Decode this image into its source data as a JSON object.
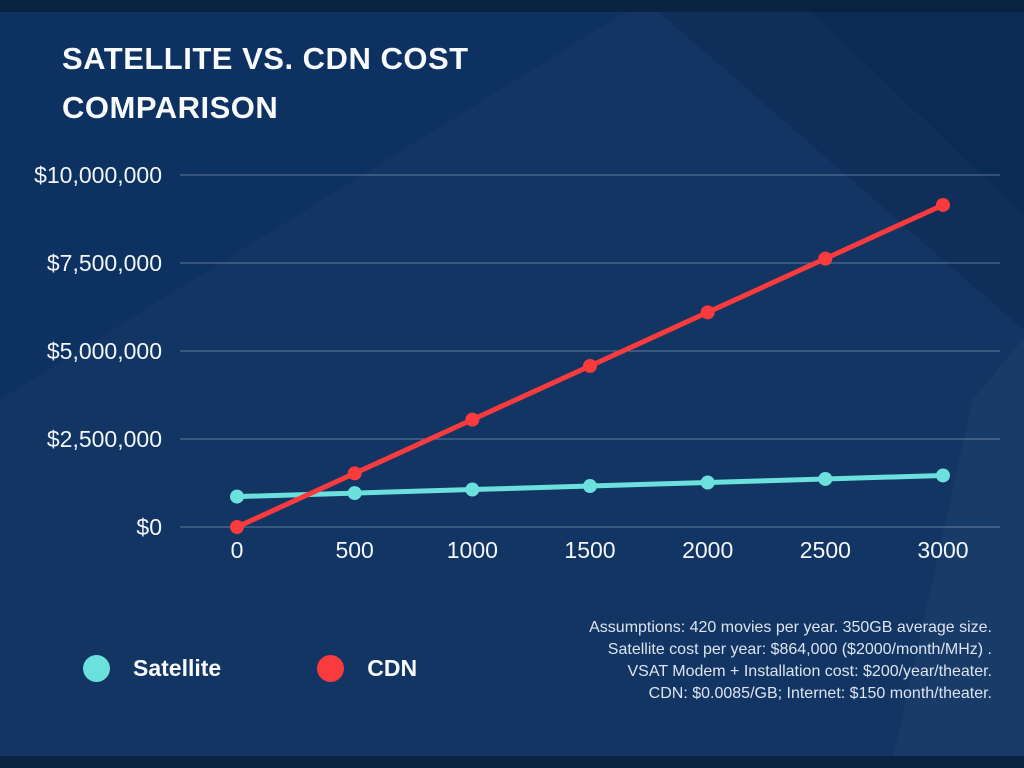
{
  "page": {
    "title_line1": "SATELLITE VS. CDN COST",
    "title_line2": "COMPARISON"
  },
  "legend": {
    "items": [
      {
        "label": "Satellite",
        "color": "#6ce0dd"
      },
      {
        "label": "CDN",
        "color": "#f93b3e"
      }
    ]
  },
  "footnote": "Assumptions: 420 movies per year. 350GB average size. Satellite cost per year: $864,000 ($2000/month/MHz) . VSAT Modem + Installation cost: $200/year/theater. CDN: $0.0085/GB; Internet: $150 month/theater.",
  "colors": {
    "background": "#0d3160",
    "band": "#0a2342",
    "satellite": "#6ce0dd",
    "cdn": "#f93b3e",
    "gridline": "rgba(205,220,240,0.42)",
    "text": "#f8fafc"
  },
  "chart_data": {
    "type": "line",
    "title": "Satellite vs. CDN cost comparison",
    "xlabel": "",
    "ylabel": "",
    "x": [
      0,
      500,
      1000,
      1500,
      2000,
      2500,
      3000
    ],
    "x_tick_labels": [
      "0",
      "500",
      "1000",
      "1500",
      "2000",
      "2500",
      "3000"
    ],
    "xlim": [
      0,
      3000
    ],
    "y_ticks": [
      0,
      2500000,
      5000000,
      7500000,
      10000000
    ],
    "y_tick_labels": [
      "$0",
      "$2,500,000",
      "$5,000,000",
      "$7,500,000",
      "$10,000,000"
    ],
    "ylim": [
      0,
      10000000
    ],
    "grid": "horizontal",
    "legend_position": "bottom-left",
    "markers": true,
    "series": [
      {
        "name": "Satellite",
        "color": "#6ce0dd",
        "values": [
          864000,
          964000,
          1064000,
          1164000,
          1264000,
          1364000,
          1464000
        ]
      },
      {
        "name": "CDN",
        "color": "#f93b3e",
        "values": [
          0,
          1524750,
          3049500,
          4574250,
          6099000,
          7623750,
          9148500
        ]
      }
    ]
  }
}
